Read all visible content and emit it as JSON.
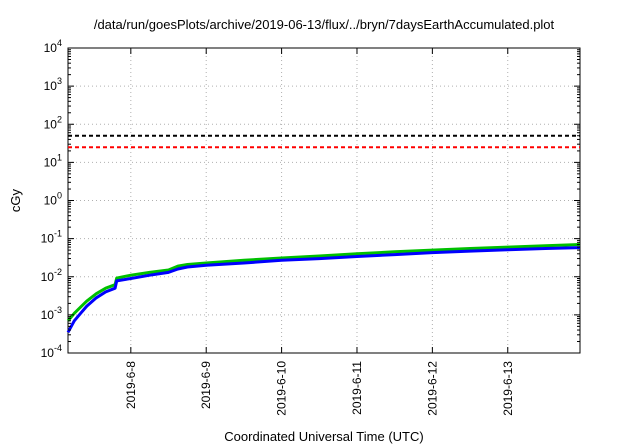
{
  "chart_data": {
    "type": "line",
    "title": "/data/run/goesPlots/archive/2019-06-13/flux/../bryn/7daysEarthAccumulated.plot",
    "xlabel": "Coordinated Universal Time (UTC)",
    "ylabel": "cGy",
    "yscale": "log",
    "ylim": [
      0.0001,
      10000
    ],
    "xlim": [
      "2019-06-07 04:00",
      "2019-06-13 23:00"
    ],
    "grid": true,
    "x_ticks": [
      "2019-6-8",
      "2019-6-9",
      "2019-6-10",
      "2019-6-11",
      "2019-6-12",
      "2019-6-13"
    ],
    "y_ticks": [
      {
        "value": 0.0001,
        "base": "10",
        "exp": "-4"
      },
      {
        "value": 0.001,
        "base": "10",
        "exp": "-3"
      },
      {
        "value": 0.01,
        "base": "10",
        "exp": "-2"
      },
      {
        "value": 0.1,
        "base": "10",
        "exp": "-1"
      },
      {
        "value": 1,
        "base": "10",
        "exp": "0"
      },
      {
        "value": 10,
        "base": "10",
        "exp": "1"
      },
      {
        "value": 100,
        "base": "10",
        "exp": "2"
      },
      {
        "value": 1000,
        "base": "10",
        "exp": "3"
      },
      {
        "value": 10000,
        "base": "10",
        "exp": "4"
      }
    ],
    "thresholds": [
      {
        "value": 50,
        "color": "#000000",
        "style": "dashed"
      },
      {
        "value": 25,
        "color": "#ff0000",
        "style": "dashed"
      }
    ],
    "series": [
      {
        "color": "#00c000",
        "x": [
          "2019-06-07 04:00",
          "2019-06-07 06:00",
          "2019-06-07 08:00",
          "2019-06-07 10:00",
          "2019-06-07 13:00",
          "2019-06-07 16:00",
          "2019-06-07 19:00",
          "2019-06-07 19:30",
          "2019-06-08 00:00",
          "2019-06-08 06:00",
          "2019-06-08 12:00",
          "2019-06-08 15:00",
          "2019-06-08 18:00",
          "2019-06-09 00:00",
          "2019-06-09 12:00",
          "2019-06-10 00:00",
          "2019-06-10 12:00",
          "2019-06-11 00:00",
          "2019-06-11 12:00",
          "2019-06-12 00:00",
          "2019-06-12 12:00",
          "2019-06-13 00:00",
          "2019-06-13 12:00",
          "2019-06-13 23:00"
        ],
        "y": [
          0.0007,
          0.0011,
          0.0016,
          0.0023,
          0.0036,
          0.005,
          0.0062,
          0.0092,
          0.011,
          0.013,
          0.015,
          0.019,
          0.021,
          0.023,
          0.027,
          0.031,
          0.035,
          0.04,
          0.045,
          0.05,
          0.055,
          0.06,
          0.065,
          0.07
        ]
      },
      {
        "color": "#0000ff",
        "x": [
          "2019-06-07 04:00",
          "2019-06-07 06:00",
          "2019-06-07 08:00",
          "2019-06-07 10:00",
          "2019-06-07 13:00",
          "2019-06-07 16:00",
          "2019-06-07 19:00",
          "2019-06-07 19:30",
          "2019-06-08 00:00",
          "2019-06-08 06:00",
          "2019-06-08 12:00",
          "2019-06-08 15:00",
          "2019-06-08 18:00",
          "2019-06-09 00:00",
          "2019-06-09 12:00",
          "2019-06-10 00:00",
          "2019-06-10 12:00",
          "2019-06-11 00:00",
          "2019-06-11 12:00",
          "2019-06-12 00:00",
          "2019-06-12 12:00",
          "2019-06-13 00:00",
          "2019-06-13 12:00",
          "2019-06-13 23:00"
        ],
        "y": [
          0.00035,
          0.0007,
          0.0011,
          0.0017,
          0.0028,
          0.004,
          0.005,
          0.0078,
          0.009,
          0.011,
          0.013,
          0.016,
          0.018,
          0.02,
          0.023,
          0.027,
          0.03,
          0.034,
          0.038,
          0.043,
          0.047,
          0.051,
          0.055,
          0.058
        ]
      }
    ]
  }
}
